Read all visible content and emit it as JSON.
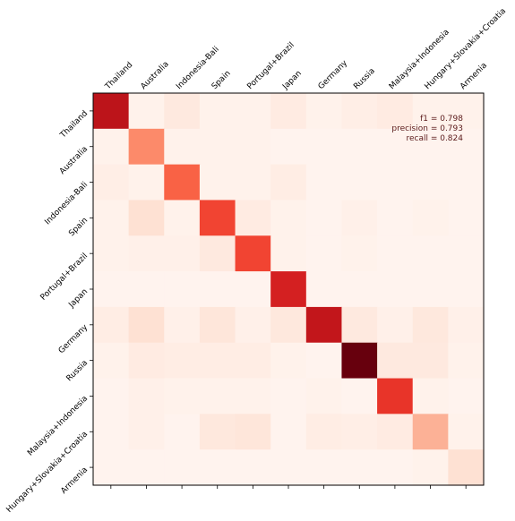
{
  "chart_data": {
    "type": "heatmap",
    "title": "",
    "xlabel": "",
    "ylabel": "",
    "colormap": "Reds",
    "x_labels": [
      "Thailand",
      "Australia",
      "Indonesia-Bali",
      "Spain",
      "Portugal+Brazil",
      "Japan",
      "Germany",
      "Russia",
      "Malaysia+Indonesia",
      "Hungary+Slovakia+Croatia",
      "Armenia"
    ],
    "y_labels": [
      "Thailand",
      "Australia",
      "Indonesia-Bali",
      "Spain",
      "Portugal+Brazil",
      "Japan",
      "Germany",
      "Russia",
      "Malaysia+Indonesia",
      "Hungary+Slovakia+Croatia",
      "Armenia"
    ],
    "matrix": [
      [
        0.8,
        0.02,
        0.07,
        0.02,
        0.02,
        0.06,
        0.02,
        0.04,
        0.06,
        0.02,
        0.02
      ],
      [
        0.02,
        0.4,
        0.02,
        0.02,
        0.02,
        0.01,
        0.01,
        0.01,
        0.01,
        0.01,
        0.01
      ],
      [
        0.04,
        0.02,
        0.52,
        0.02,
        0.02,
        0.05,
        0.01,
        0.01,
        0.01,
        0.01,
        0.01
      ],
      [
        0.02,
        0.12,
        0.02,
        0.6,
        0.06,
        0.02,
        0.01,
        0.03,
        0.01,
        0.02,
        0.01
      ],
      [
        0.02,
        0.03,
        0.03,
        0.07,
        0.6,
        0.02,
        0.01,
        0.02,
        0.01,
        0.01,
        0.01
      ],
      [
        0.01,
        0.01,
        0.01,
        0.01,
        0.01,
        0.72,
        0.01,
        0.01,
        0.01,
        0.01,
        0.01
      ],
      [
        0.05,
        0.12,
        0.03,
        0.09,
        0.03,
        0.08,
        0.78,
        0.07,
        0.03,
        0.08,
        0.03
      ],
      [
        0.02,
        0.06,
        0.05,
        0.05,
        0.05,
        0.02,
        0.01,
        1.0,
        0.07,
        0.07,
        0.02
      ],
      [
        0.01,
        0.03,
        0.02,
        0.02,
        0.02,
        0.01,
        0.02,
        0.01,
        0.65,
        0.02,
        0.01
      ],
      [
        0.01,
        0.03,
        0.01,
        0.08,
        0.09,
        0.01,
        0.05,
        0.04,
        0.06,
        0.28,
        0.02
      ],
      [
        0.01,
        0.01,
        0.01,
        0.01,
        0.01,
        0.01,
        0.01,
        0.01,
        0.01,
        0.02,
        0.12
      ]
    ],
    "value_range": [
      0,
      1
    ],
    "grid": false,
    "metrics": {
      "f1": "f1 = 0.798",
      "precision": "precision = 0.793",
      "recall": "recall = 0.824"
    },
    "metrics_placement": "top-right"
  }
}
